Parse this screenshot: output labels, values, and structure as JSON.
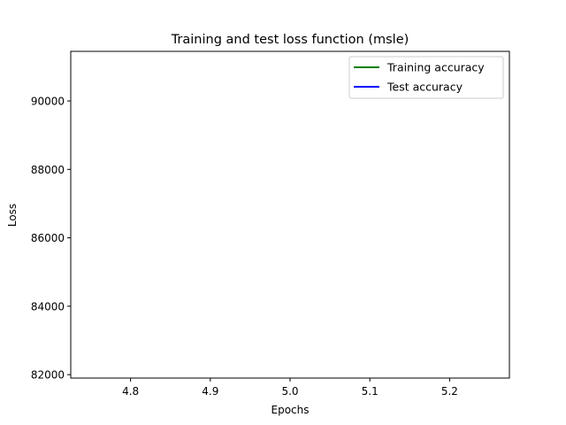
{
  "chart_data": {
    "type": "line",
    "title": "Training and test loss function (msle)",
    "xlabel": "Epochs",
    "ylabel": "Loss",
    "xlim": [
      4.725,
      5.275
    ],
    "ylim": [
      81900,
      91450
    ],
    "xticks": [
      4.8,
      4.9,
      5.0,
      5.1,
      5.2
    ],
    "xtick_labels": [
      "4.8",
      "4.9",
      "5.0",
      "5.1",
      "5.2"
    ],
    "yticks": [
      82000,
      84000,
      86000,
      88000,
      90000
    ],
    "ytick_labels": [
      "82000",
      "84000",
      "86000",
      "88000",
      "90000"
    ],
    "grid": false,
    "legend_position": "top-right",
    "series": [
      {
        "name": "Training accuracy",
        "color": "#008000",
        "x": [],
        "y": []
      },
      {
        "name": "Test accuracy",
        "color": "#0000ff",
        "x": [],
        "y": []
      }
    ]
  }
}
